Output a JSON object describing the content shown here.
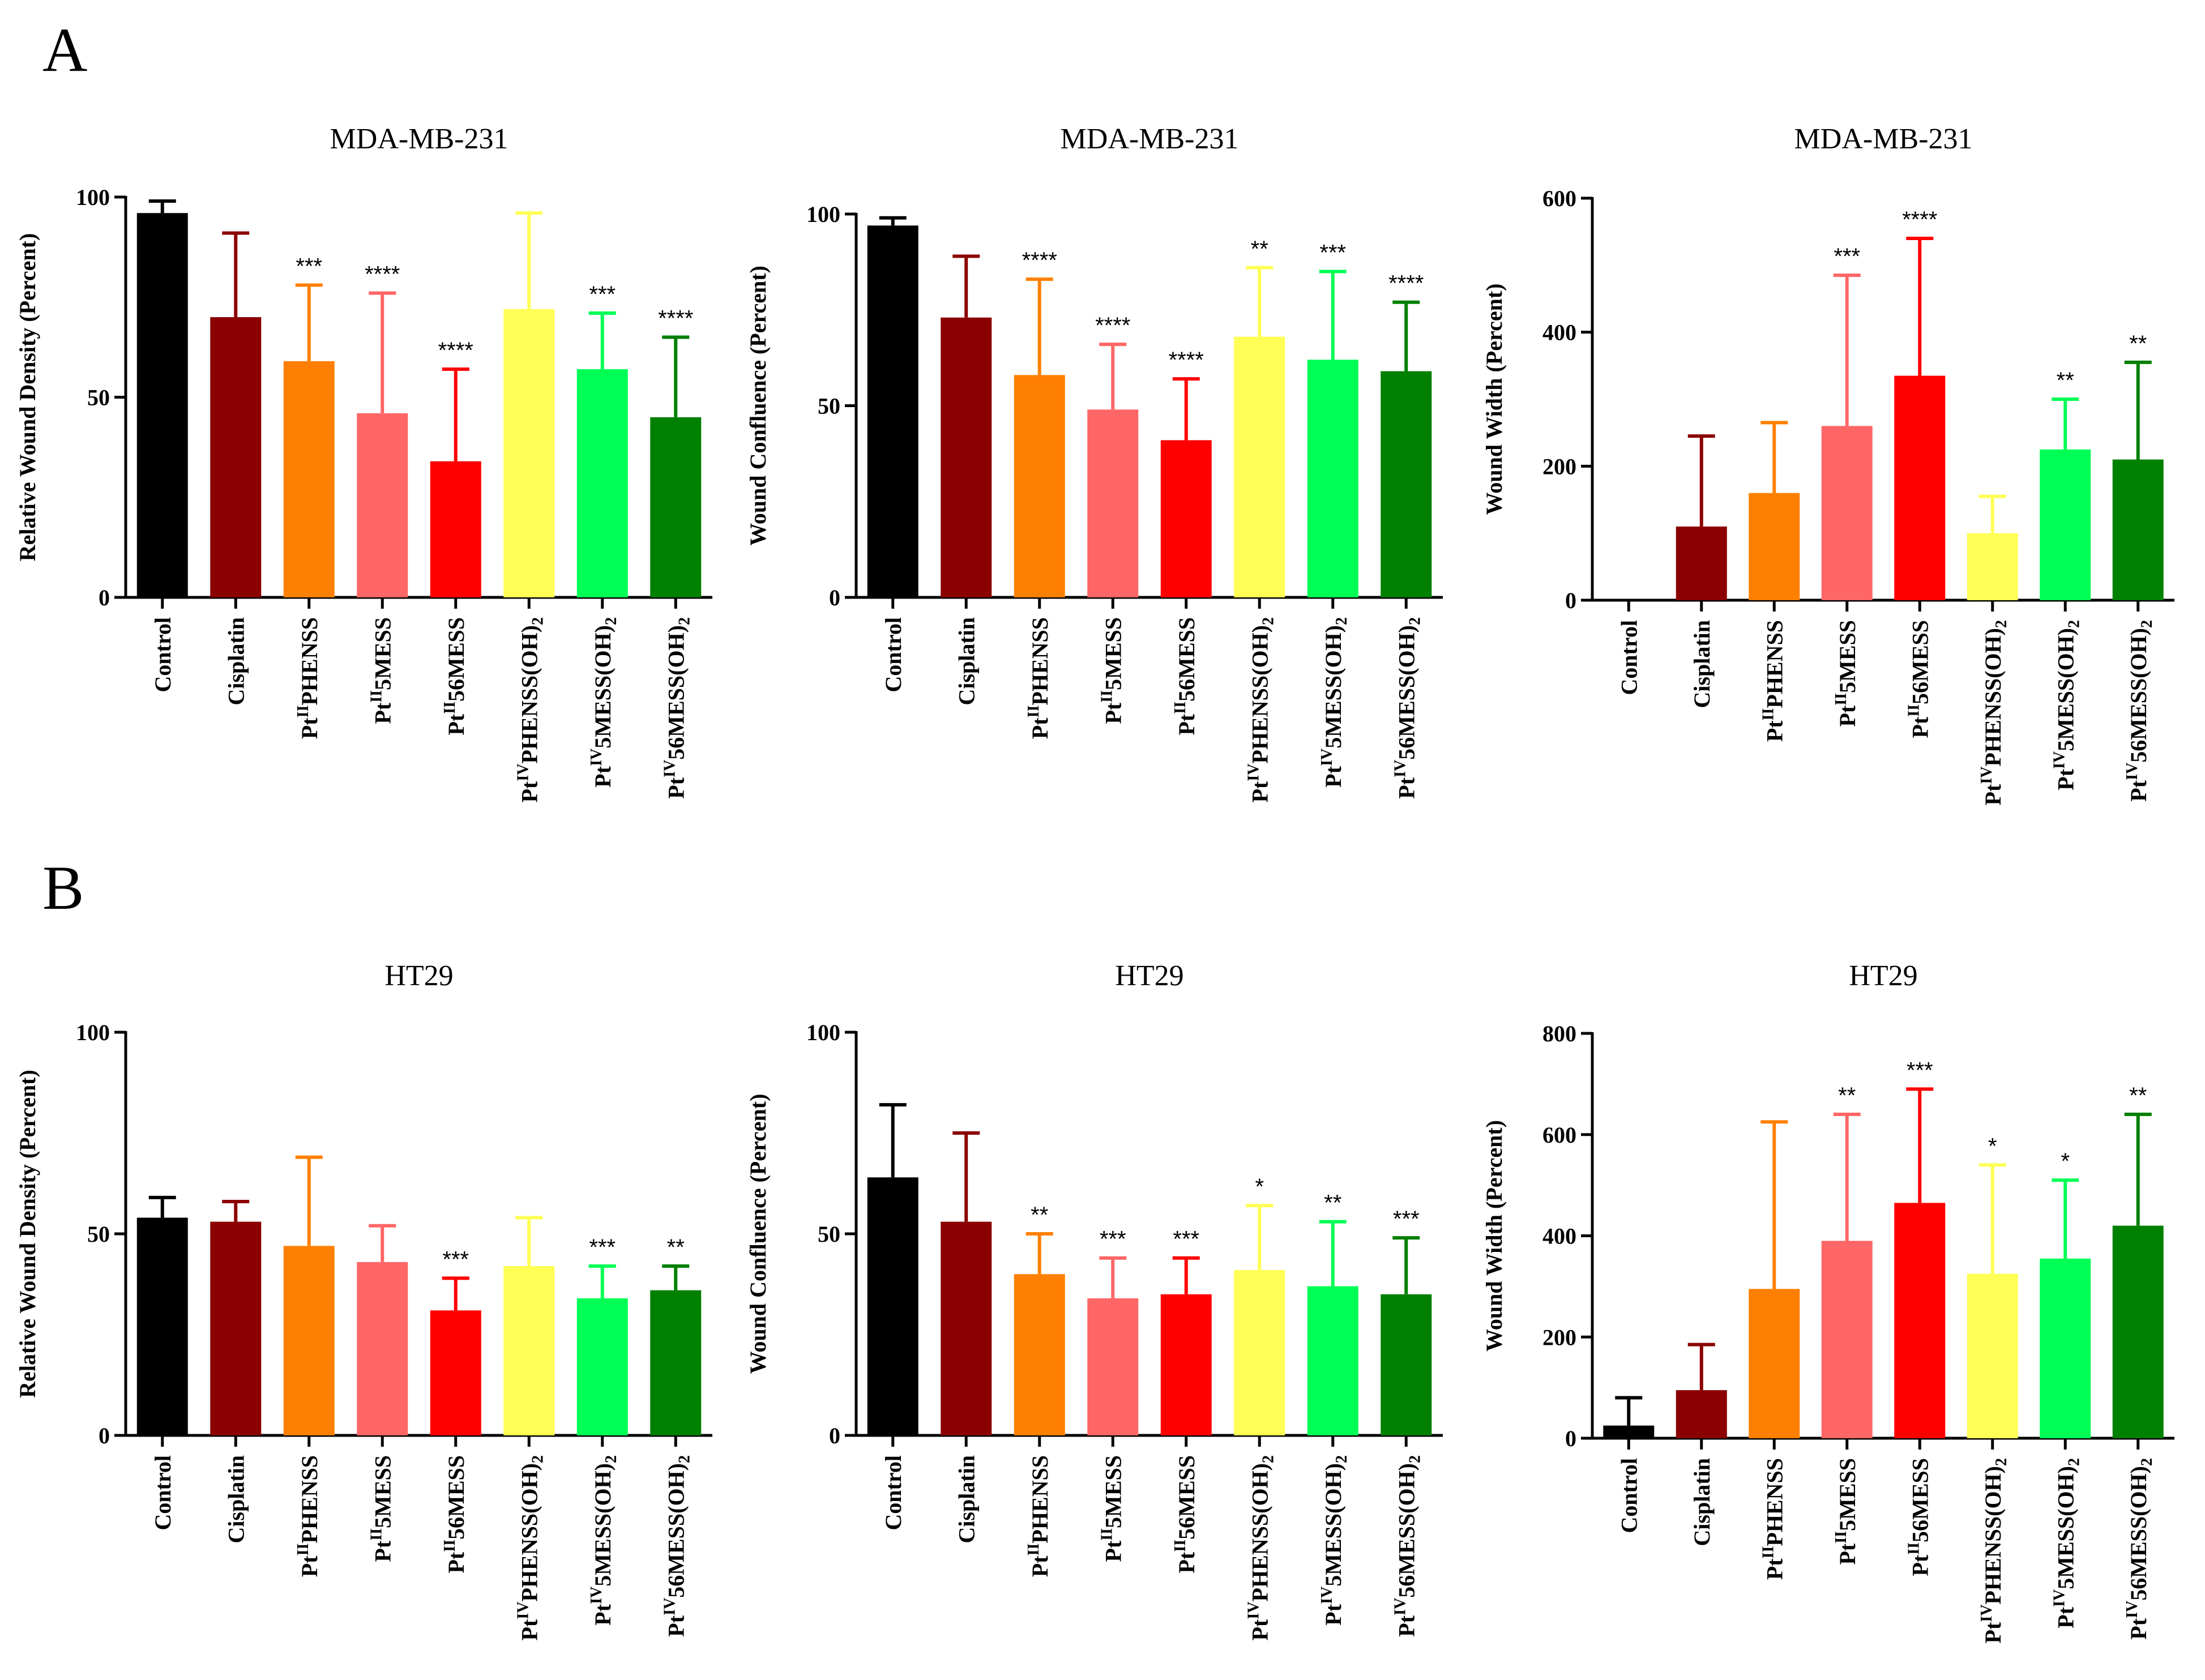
{
  "panels": [
    {
      "letter": "A"
    },
    {
      "letter": "B"
    }
  ],
  "colors": [
    "#000000",
    "#8b0000",
    "#ff8000",
    "#ff6666",
    "#ff0000",
    "#ffff55",
    "#00ff55",
    "#008000"
  ],
  "chart_data": [
    {
      "type": "bar",
      "title": "MDA-MB-231",
      "ylabel": "Relative Wound Density (Percent)",
      "ylim": [
        0,
        100
      ],
      "yticks": [
        "0",
        "50",
        "100"
      ],
      "categories": [
        {
          "pre": "Control",
          "sup": "",
          "post": "",
          "sub": ""
        },
        {
          "pre": "Cisplatin",
          "sup": "",
          "post": "",
          "sub": ""
        },
        {
          "pre": "Pt",
          "sup": "II",
          "post": "PHENSS",
          "sub": ""
        },
        {
          "pre": "Pt",
          "sup": "II",
          "post": "5MESS",
          "sub": ""
        },
        {
          "pre": "Pt",
          "sup": "II",
          "post": "56MESS",
          "sub": ""
        },
        {
          "pre": "Pt",
          "sup": "IV",
          "post": "PHENSS(OH)",
          "sub": "2"
        },
        {
          "pre": "Pt",
          "sup": "IV",
          "post": "5MESS(OH)",
          "sub": "2"
        },
        {
          "pre": "Pt",
          "sup": "IV",
          "post": "56MESS(OH)",
          "sub": "2"
        }
      ],
      "values": [
        96,
        70,
        59,
        46,
        34,
        72,
        57,
        45
      ],
      "errors": [
        3,
        21,
        19,
        30,
        23,
        24,
        14,
        20
      ],
      "significance": [
        "",
        "",
        "***",
        "****",
        "****",
        "",
        "***",
        "****"
      ]
    },
    {
      "type": "bar",
      "title": "MDA-MB-231",
      "ylabel": "Wound Confluence (Percent)",
      "ylim": [
        0,
        100
      ],
      "yticks": [
        "0",
        "50",
        "100"
      ],
      "categories": [
        {
          "pre": "Control",
          "sup": "",
          "post": "",
          "sub": ""
        },
        {
          "pre": "Cisplatin",
          "sup": "",
          "post": "",
          "sub": ""
        },
        {
          "pre": "Pt",
          "sup": "II",
          "post": "PHENSS",
          "sub": ""
        },
        {
          "pre": "Pt",
          "sup": "II",
          "post": "5MESS",
          "sub": ""
        },
        {
          "pre": "Pt",
          "sup": "II",
          "post": "56MESS",
          "sub": ""
        },
        {
          "pre": "Pt",
          "sup": "IV",
          "post": "PHENSS(OH)",
          "sub": "2"
        },
        {
          "pre": "Pt",
          "sup": "IV",
          "post": "5MESS(OH)",
          "sub": "2"
        },
        {
          "pre": "Pt",
          "sup": "IV",
          "post": "56MESS(OH)",
          "sub": "2"
        }
      ],
      "values": [
        97,
        73,
        58,
        49,
        41,
        68,
        62,
        59
      ],
      "errors": [
        2,
        16,
        25,
        17,
        16,
        18,
        23,
        18
      ],
      "significance": [
        "",
        "",
        "****",
        "****",
        "****",
        "**",
        "***",
        "****"
      ]
    },
    {
      "type": "bar",
      "title": "MDA-MB-231",
      "ylabel": "Wound Width (Percent)",
      "ylim": [
        0,
        600
      ],
      "yticks": [
        "0",
        "200",
        "400",
        "600"
      ],
      "categories": [
        {
          "pre": "Control",
          "sup": "",
          "post": "",
          "sub": ""
        },
        {
          "pre": "Cisplatin",
          "sup": "",
          "post": "",
          "sub": ""
        },
        {
          "pre": "Pt",
          "sup": "II",
          "post": "PHENSS",
          "sub": ""
        },
        {
          "pre": "Pt",
          "sup": "II",
          "post": "5MESS",
          "sub": ""
        },
        {
          "pre": "Pt",
          "sup": "II",
          "post": "56MESS",
          "sub": ""
        },
        {
          "pre": "Pt",
          "sup": "IV",
          "post": "PHENSS(OH)",
          "sub": "2"
        },
        {
          "pre": "Pt",
          "sup": "IV",
          "post": "5MESS(OH)",
          "sub": "2"
        },
        {
          "pre": "Pt",
          "sup": "IV",
          "post": "56MESS(OH)",
          "sub": "2"
        }
      ],
      "values": [
        0,
        110,
        160,
        260,
        335,
        100,
        225,
        210
      ],
      "errors": [
        0,
        135,
        105,
        225,
        205,
        55,
        75,
        145
      ],
      "significance": [
        "",
        "",
        "",
        "***",
        "****",
        "",
        "**",
        "**"
      ]
    },
    {
      "type": "bar",
      "title": "HT29",
      "ylabel": "Relative Wound Density (Percent)",
      "ylim": [
        0,
        100
      ],
      "yticks": [
        "0",
        "50",
        "100"
      ],
      "categories": [
        {
          "pre": "Control",
          "sup": "",
          "post": "",
          "sub": ""
        },
        {
          "pre": "Cisplatin",
          "sup": "",
          "post": "",
          "sub": ""
        },
        {
          "pre": "Pt",
          "sup": "II",
          "post": "PHENSS",
          "sub": ""
        },
        {
          "pre": "Pt",
          "sup": "II",
          "post": "5MESS",
          "sub": ""
        },
        {
          "pre": "Pt",
          "sup": "II",
          "post": "56MESS",
          "sub": ""
        },
        {
          "pre": "Pt",
          "sup": "IV",
          "post": "PHENSS(OH)",
          "sub": "2"
        },
        {
          "pre": "Pt",
          "sup": "IV",
          "post": "5MESS(OH)",
          "sub": "2"
        },
        {
          "pre": "Pt",
          "sup": "IV",
          "post": "56MESS(OH)",
          "sub": "2"
        }
      ],
      "values": [
        54,
        53,
        47,
        43,
        31,
        42,
        34,
        36
      ],
      "errors": [
        5,
        5,
        22,
        9,
        8,
        12,
        8,
        6
      ],
      "significance": [
        "",
        "",
        "",
        "",
        "***",
        "",
        "***",
        "**"
      ]
    },
    {
      "type": "bar",
      "title": "HT29",
      "ylabel": "Wound Confluence (Percent)",
      "ylim": [
        0,
        100
      ],
      "yticks": [
        "0",
        "50",
        "100"
      ],
      "categories": [
        {
          "pre": "Control",
          "sup": "",
          "post": "",
          "sub": ""
        },
        {
          "pre": "Cisplatin",
          "sup": "",
          "post": "",
          "sub": ""
        },
        {
          "pre": "Pt",
          "sup": "II",
          "post": "PHENSS",
          "sub": ""
        },
        {
          "pre": "Pt",
          "sup": "II",
          "post": "5MESS",
          "sub": ""
        },
        {
          "pre": "Pt",
          "sup": "II",
          "post": "56MESS",
          "sub": ""
        },
        {
          "pre": "Pt",
          "sup": "IV",
          "post": "PHENSS(OH)",
          "sub": "2"
        },
        {
          "pre": "Pt",
          "sup": "IV",
          "post": "5MESS(OH)",
          "sub": "2"
        },
        {
          "pre": "Pt",
          "sup": "IV",
          "post": "56MESS(OH)",
          "sub": "2"
        }
      ],
      "values": [
        64,
        53,
        40,
        34,
        35,
        41,
        37,
        35
      ],
      "errors": [
        18,
        22,
        10,
        10,
        9,
        16,
        16,
        14
      ],
      "significance": [
        "",
        "",
        "**",
        "***",
        "***",
        "*",
        "**",
        "***"
      ]
    },
    {
      "type": "bar",
      "title": "HT29",
      "ylabel": "Wound Width (Percent)",
      "ylim": [
        0,
        800
      ],
      "yticks": [
        "0",
        "200",
        "400",
        "600",
        "800"
      ],
      "categories": [
        {
          "pre": "Control",
          "sup": "",
          "post": "",
          "sub": ""
        },
        {
          "pre": "Cisplatin",
          "sup": "",
          "post": "",
          "sub": ""
        },
        {
          "pre": "Pt",
          "sup": "II",
          "post": "PHENSS",
          "sub": ""
        },
        {
          "pre": "Pt",
          "sup": "II",
          "post": "5MESS",
          "sub": ""
        },
        {
          "pre": "Pt",
          "sup": "II",
          "post": "56MESS",
          "sub": ""
        },
        {
          "pre": "Pt",
          "sup": "IV",
          "post": "PHENSS(OH)",
          "sub": "2"
        },
        {
          "pre": "Pt",
          "sup": "IV",
          "post": "5MESS(OH)",
          "sub": "2"
        },
        {
          "pre": "Pt",
          "sup": "IV",
          "post": "56MESS(OH)",
          "sub": "2"
        }
      ],
      "values": [
        25,
        95,
        295,
        390,
        465,
        325,
        355,
        420
      ],
      "errors": [
        55,
        90,
        330,
        250,
        225,
        215,
        155,
        220
      ],
      "significance": [
        "",
        "",
        "",
        "**",
        "***",
        "*",
        "*",
        "**"
      ]
    }
  ]
}
